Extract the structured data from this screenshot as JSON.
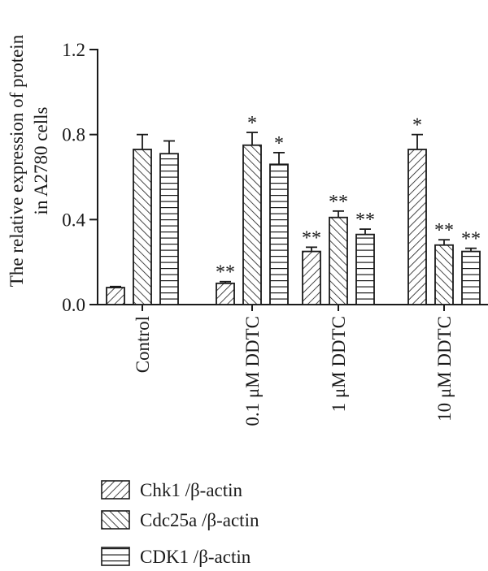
{
  "chart_data": {
    "type": "bar",
    "ylabel_line1": "The relative expression of protein",
    "ylabel_line2": "in A2780 cells",
    "ylim": [
      0,
      1.2
    ],
    "yticks": [
      "0.0",
      "0.4",
      "0.8",
      "1.2"
    ],
    "categories": [
      "Control",
      "0.1 μM DDTC",
      "1 μM DDTC",
      "10 μM DDTC"
    ],
    "series": [
      {
        "name": "Chk1 /β-actin",
        "pattern": "diag-right",
        "values": [
          0.08,
          0.1,
          0.25,
          0.73
        ],
        "errors": [
          0.005,
          0.008,
          0.02,
          0.07
        ],
        "sig": [
          "",
          "**",
          "**",
          "*"
        ]
      },
      {
        "name": "Cdc25a /β-actin",
        "pattern": "diag-left",
        "values": [
          0.73,
          0.75,
          0.41,
          0.28
        ],
        "errors": [
          0.07,
          0.06,
          0.03,
          0.025
        ],
        "sig": [
          "",
          "*",
          "**",
          "**"
        ]
      },
      {
        "name": "CDK1 /β-actin",
        "pattern": "horizontal",
        "values": [
          0.71,
          0.66,
          0.33,
          0.25
        ],
        "errors": [
          0.06,
          0.055,
          0.025,
          0.015
        ],
        "sig": [
          "",
          "*",
          "**",
          "**"
        ]
      }
    ],
    "grid": false,
    "legend_position": "bottom-left"
  }
}
